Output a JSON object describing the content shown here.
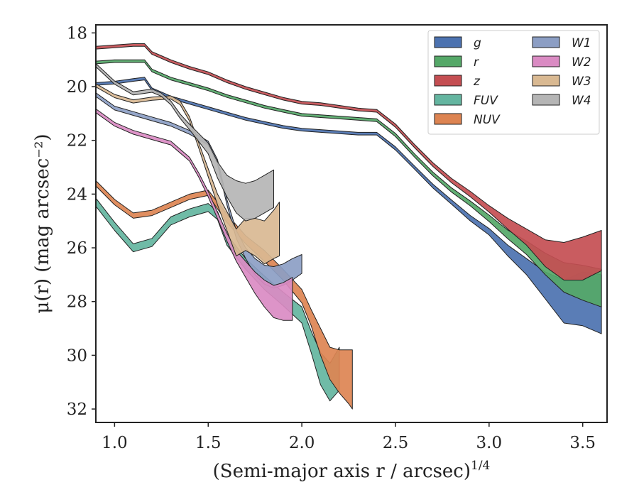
{
  "chart_data": {
    "type": "area",
    "xlabel": "(Semi-major axis r / arcsec)",
    "xlabel_sup": "1/4",
    "ylabel": "μ(r) (mag arcsec⁻²)",
    "xlim": [
      0.9,
      3.63
    ],
    "ylim": [
      32.5,
      17.7
    ],
    "y_inverted": true,
    "xticks": [
      1.0,
      1.5,
      2.0,
      2.5,
      3.0,
      3.5
    ],
    "xtick_labels": [
      "1.0",
      "1.5",
      "2.0",
      "2.5",
      "3.0",
      "3.5"
    ],
    "yticks": [
      18,
      20,
      22,
      24,
      26,
      28,
      30,
      32
    ],
    "ytick_labels": [
      "18",
      "20",
      "22",
      "24",
      "26",
      "28",
      "30",
      "32"
    ],
    "grid": false,
    "legend_placement": "top-right",
    "legend_columns": 2,
    "series": [
      {
        "name": "g",
        "color": "#4c72b0",
        "x": [
          0.9,
          1.0,
          1.1,
          1.16,
          1.2,
          1.25,
          1.3,
          1.4,
          1.5,
          1.6,
          1.7,
          1.8,
          1.9,
          2.0,
          2.1,
          2.2,
          2.3,
          2.4,
          2.5,
          2.6,
          2.7,
          2.8,
          2.9,
          3.0,
          3.1,
          3.2,
          3.3,
          3.4,
          3.5,
          3.6
        ],
        "y": [
          19.9,
          19.85,
          19.75,
          19.7,
          20.1,
          20.25,
          20.4,
          20.6,
          20.8,
          21.0,
          21.2,
          21.35,
          21.5,
          21.6,
          21.65,
          21.7,
          21.75,
          21.75,
          22.3,
          23.0,
          23.7,
          24.3,
          24.9,
          25.4,
          26.1,
          26.7,
          27.4,
          28.0,
          27.9,
          28.1
        ],
        "err": [
          0.05,
          0.05,
          0.05,
          0.05,
          0.05,
          0.05,
          0.05,
          0.05,
          0.05,
          0.05,
          0.05,
          0.05,
          0.05,
          0.05,
          0.05,
          0.05,
          0.05,
          0.05,
          0.06,
          0.06,
          0.07,
          0.08,
          0.1,
          0.12,
          0.2,
          0.3,
          0.5,
          0.8,
          1.0,
          1.1
        ]
      },
      {
        "name": "r",
        "color": "#55a868",
        "x": [
          0.9,
          1.0,
          1.1,
          1.16,
          1.2,
          1.25,
          1.3,
          1.4,
          1.5,
          1.6,
          1.7,
          1.8,
          1.9,
          2.0,
          2.1,
          2.2,
          2.3,
          2.4,
          2.5,
          2.6,
          2.7,
          2.8,
          2.9,
          3.0,
          3.1,
          3.2,
          3.3,
          3.4,
          3.5,
          3.6
        ],
        "y": [
          19.1,
          19.05,
          19.05,
          19.05,
          19.4,
          19.55,
          19.7,
          19.9,
          20.1,
          20.35,
          20.55,
          20.75,
          20.9,
          21.05,
          21.1,
          21.15,
          21.2,
          21.25,
          21.8,
          22.55,
          23.25,
          23.85,
          24.35,
          24.9,
          25.5,
          26.0,
          26.6,
          27.1,
          27.3,
          27.5
        ],
        "err": [
          0.05,
          0.05,
          0.05,
          0.05,
          0.05,
          0.05,
          0.05,
          0.05,
          0.05,
          0.05,
          0.05,
          0.05,
          0.05,
          0.05,
          0.05,
          0.05,
          0.05,
          0.05,
          0.06,
          0.06,
          0.07,
          0.08,
          0.09,
          0.12,
          0.16,
          0.25,
          0.4,
          0.55,
          0.65,
          0.7
        ]
      },
      {
        "name": "z",
        "color": "#c44e52",
        "x": [
          0.9,
          1.0,
          1.1,
          1.16,
          1.2,
          1.25,
          1.3,
          1.4,
          1.5,
          1.6,
          1.7,
          1.8,
          1.9,
          2.0,
          2.1,
          2.2,
          2.3,
          2.4,
          2.5,
          2.6,
          2.7,
          2.8,
          2.9,
          3.0,
          3.1,
          3.2,
          3.3,
          3.4,
          3.5,
          3.6
        ],
        "y": [
          18.55,
          18.5,
          18.45,
          18.45,
          18.75,
          18.9,
          19.05,
          19.3,
          19.5,
          19.8,
          20.05,
          20.25,
          20.45,
          20.6,
          20.65,
          20.75,
          20.85,
          20.9,
          21.45,
          22.2,
          22.9,
          23.5,
          24.0,
          24.55,
          25.1,
          25.6,
          26.2,
          26.5,
          26.4,
          26.1
        ],
        "err": [
          0.05,
          0.05,
          0.05,
          0.05,
          0.05,
          0.05,
          0.05,
          0.05,
          0.05,
          0.05,
          0.05,
          0.05,
          0.05,
          0.05,
          0.05,
          0.05,
          0.05,
          0.05,
          0.06,
          0.06,
          0.07,
          0.08,
          0.1,
          0.12,
          0.2,
          0.3,
          0.5,
          0.7,
          0.8,
          0.75
        ]
      },
      {
        "name": "FUV",
        "color": "#64b5a0",
        "x": [
          0.9,
          1.0,
          1.1,
          1.2,
          1.3,
          1.4,
          1.5,
          1.55,
          1.6,
          1.7,
          1.8,
          1.9,
          2.0,
          2.05,
          2.1,
          2.15,
          2.2
        ],
        "y": [
          24.3,
          25.2,
          26.0,
          25.8,
          25.0,
          24.7,
          24.5,
          24.8,
          25.7,
          26.6,
          27.3,
          27.9,
          28.5,
          29.5,
          30.5,
          31.0,
          30.5
        ],
        "err": [
          0.15,
          0.15,
          0.15,
          0.15,
          0.15,
          0.15,
          0.15,
          0.15,
          0.2,
          0.2,
          0.25,
          0.25,
          0.3,
          0.4,
          0.6,
          0.7,
          0.8
        ]
      },
      {
        "name": "NUV",
        "color": "#dd8452",
        "x": [
          0.9,
          1.0,
          1.1,
          1.2,
          1.3,
          1.4,
          1.5,
          1.6,
          1.7,
          1.8,
          1.9,
          2.0,
          2.05,
          2.1,
          2.15,
          2.2,
          2.25,
          2.27
        ],
        "y": [
          23.6,
          24.3,
          24.8,
          24.7,
          24.4,
          24.1,
          23.95,
          24.9,
          25.7,
          26.3,
          27.0,
          27.8,
          28.6,
          29.5,
          30.3,
          30.6,
          30.8,
          30.9
        ],
        "err": [
          0.1,
          0.1,
          0.1,
          0.1,
          0.1,
          0.1,
          0.1,
          0.15,
          0.15,
          0.2,
          0.2,
          0.25,
          0.3,
          0.5,
          0.6,
          0.8,
          1.0,
          1.1
        ]
      },
      {
        "name": "W1",
        "color": "#8c9ec4",
        "x": [
          0.9,
          1.0,
          1.1,
          1.2,
          1.3,
          1.4,
          1.5,
          1.55,
          1.6,
          1.65,
          1.7,
          1.75,
          1.8,
          1.85,
          1.9,
          1.95,
          2.0
        ],
        "y": [
          20.3,
          20.8,
          21.0,
          21.2,
          21.4,
          21.7,
          22.1,
          22.8,
          24.3,
          25.5,
          26.2,
          26.7,
          27.0,
          27.1,
          27.0,
          26.8,
          26.6
        ],
        "err": [
          0.07,
          0.07,
          0.07,
          0.07,
          0.07,
          0.07,
          0.07,
          0.08,
          0.1,
          0.15,
          0.2,
          0.3,
          0.35,
          0.4,
          0.4,
          0.4,
          0.35
        ]
      },
      {
        "name": "W2",
        "color": "#da8bc3",
        "x": [
          0.9,
          1.0,
          1.1,
          1.2,
          1.3,
          1.4,
          1.45,
          1.5,
          1.55,
          1.6,
          1.65,
          1.7,
          1.75,
          1.8,
          1.85,
          1.9,
          1.95
        ],
        "y": [
          20.9,
          21.4,
          21.7,
          21.9,
          22.1,
          22.7,
          23.3,
          24.0,
          24.8,
          25.6,
          26.3,
          26.8,
          27.3,
          27.7,
          28.0,
          28.0,
          27.9
        ],
        "err": [
          0.07,
          0.07,
          0.07,
          0.07,
          0.07,
          0.07,
          0.08,
          0.1,
          0.12,
          0.15,
          0.2,
          0.3,
          0.4,
          0.5,
          0.6,
          0.7,
          0.8
        ]
      },
      {
        "name": "W3",
        "color": "#d9b992",
        "x": [
          0.9,
          1.0,
          1.1,
          1.2,
          1.3,
          1.35,
          1.4,
          1.45,
          1.5,
          1.55,
          1.6,
          1.65,
          1.7,
          1.75,
          1.8,
          1.85,
          1.88
        ],
        "y": [
          19.95,
          20.35,
          20.55,
          20.45,
          20.4,
          20.6,
          21.2,
          22.2,
          23.2,
          24.2,
          25.0,
          25.8,
          25.5,
          25.6,
          25.8,
          25.5,
          25.3
        ],
        "err": [
          0.06,
          0.06,
          0.06,
          0.06,
          0.06,
          0.07,
          0.08,
          0.1,
          0.15,
          0.2,
          0.35,
          0.5,
          0.6,
          0.7,
          0.8,
          0.9,
          1.0
        ]
      },
      {
        "name": "W4",
        "color": "#b5b5b5",
        "x": [
          0.9,
          1.0,
          1.1,
          1.2,
          1.25,
          1.3,
          1.35,
          1.4,
          1.45,
          1.5,
          1.55,
          1.6,
          1.65,
          1.7,
          1.75,
          1.8,
          1.85
        ],
        "y": [
          19.2,
          19.85,
          20.25,
          20.15,
          20.3,
          20.6,
          21.1,
          21.5,
          21.9,
          22.3,
          23.1,
          23.7,
          24.1,
          24.3,
          24.2,
          24.0,
          23.8
        ],
        "err": [
          0.06,
          0.06,
          0.06,
          0.06,
          0.06,
          0.07,
          0.08,
          0.1,
          0.15,
          0.2,
          0.3,
          0.4,
          0.6,
          0.7,
          0.7,
          0.7,
          0.7
        ]
      }
    ]
  }
}
